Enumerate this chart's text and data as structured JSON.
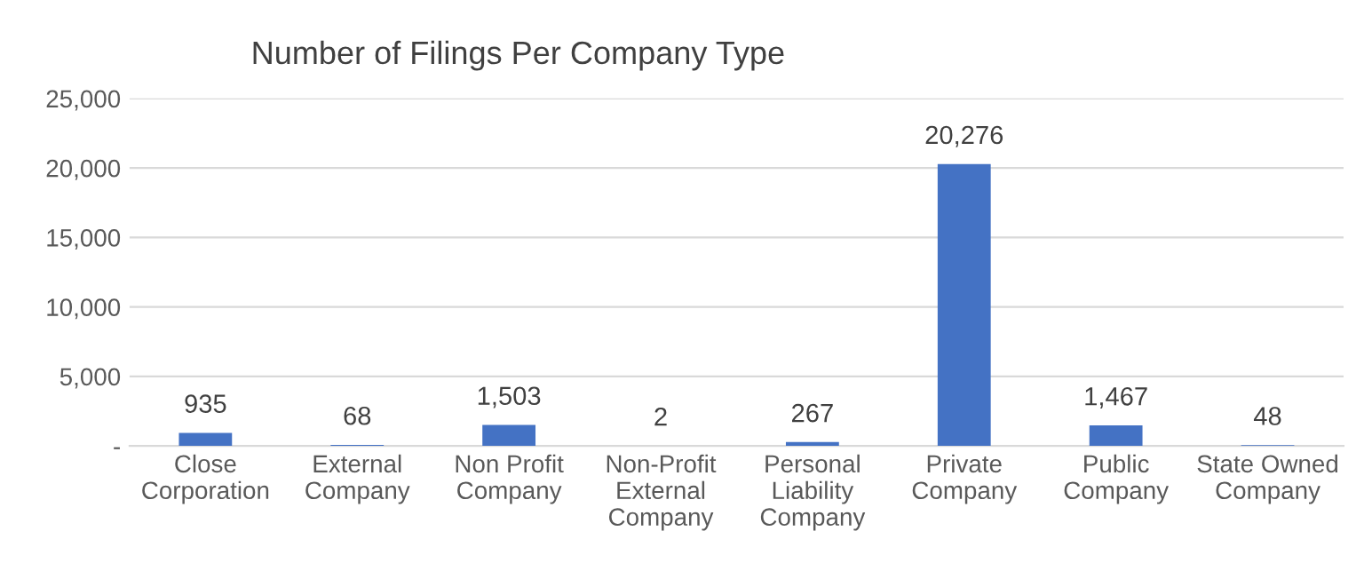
{
  "chart_data": {
    "type": "bar",
    "title": "Number of Filings Per Company Type",
    "categories": [
      "Close Corporation",
      "External Company",
      "Non Profit Company",
      "Non-Profit External Company",
      "Personal Liability Company",
      "Private Company",
      "Public Company",
      "State Owned Company"
    ],
    "values": [
      935,
      68,
      1503,
      2,
      267,
      20276,
      1467,
      48
    ],
    "value_labels": [
      "935",
      "68",
      "1,503",
      "2",
      "267",
      "20,276",
      "1,467",
      "48"
    ],
    "color": "#4472c4",
    "ylim": [
      0,
      25000
    ],
    "yticks": [
      {
        "value": 0,
        "label": "-"
      },
      {
        "value": 5000,
        "label": "5,000"
      },
      {
        "value": 10000,
        "label": "10,000"
      },
      {
        "value": 15000,
        "label": "15,000"
      },
      {
        "value": 20000,
        "label": "20,000"
      },
      {
        "value": 25000,
        "label": "25,000"
      }
    ],
    "grid": "y"
  }
}
